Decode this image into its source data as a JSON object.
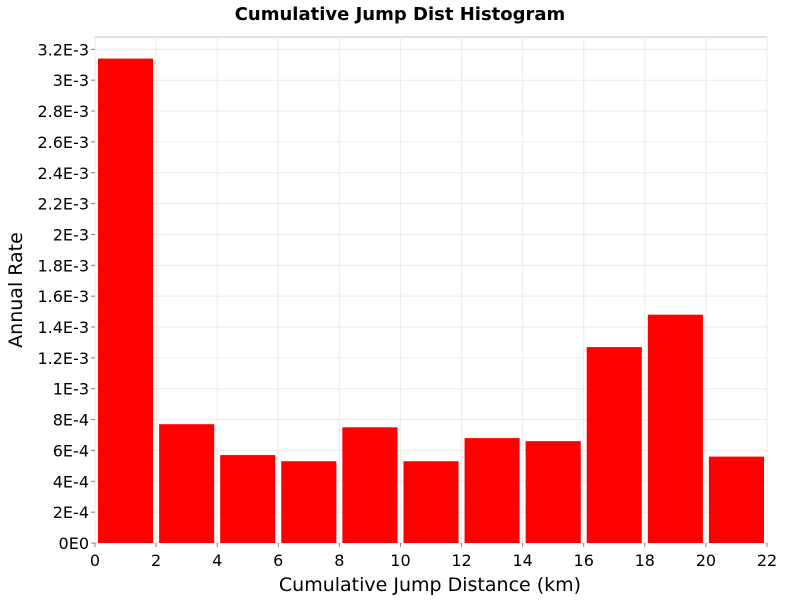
{
  "chart_data": {
    "type": "bar",
    "title": "Cumulative Jump Dist Histogram",
    "xlabel": "Cumulative Jump Distance (km)",
    "ylabel": "Annual Rate",
    "xlim": [
      0,
      22
    ],
    "ylim": [
      0,
      0.00328
    ],
    "grid": true,
    "legend": "none",
    "bar_color": "#ff0000",
    "x_ticks": [
      {
        "value": 0,
        "label": "0"
      },
      {
        "value": 2,
        "label": "2"
      },
      {
        "value": 4,
        "label": "4"
      },
      {
        "value": 6,
        "label": "6"
      },
      {
        "value": 8,
        "label": "8"
      },
      {
        "value": 10,
        "label": "10"
      },
      {
        "value": 12,
        "label": "12"
      },
      {
        "value": 14,
        "label": "14"
      },
      {
        "value": 16,
        "label": "16"
      },
      {
        "value": 18,
        "label": "18"
      },
      {
        "value": 20,
        "label": "20"
      },
      {
        "value": 22,
        "label": "22"
      }
    ],
    "y_ticks": [
      {
        "value": 0,
        "label": "0E0"
      },
      {
        "value": 0.0002,
        "label": "2E-4"
      },
      {
        "value": 0.0004,
        "label": "4E-4"
      },
      {
        "value": 0.0006,
        "label": "6E-4"
      },
      {
        "value": 0.0008,
        "label": "8E-4"
      },
      {
        "value": 0.001,
        "label": "1E-3"
      },
      {
        "value": 0.0012,
        "label": "1.2E-3"
      },
      {
        "value": 0.0014,
        "label": "1.4E-3"
      },
      {
        "value": 0.0016,
        "label": "1.6E-3"
      },
      {
        "value": 0.0018,
        "label": "1.8E-3"
      },
      {
        "value": 0.002,
        "label": "2E-3"
      },
      {
        "value": 0.0022,
        "label": "2.2E-3"
      },
      {
        "value": 0.0024,
        "label": "2.4E-3"
      },
      {
        "value": 0.0026,
        "label": "2.6E-3"
      },
      {
        "value": 0.0028,
        "label": "2.8E-3"
      },
      {
        "value": 0.003,
        "label": "3E-3"
      },
      {
        "value": 0.0032,
        "label": "3.2E-3"
      }
    ],
    "bins": [
      {
        "x": 1,
        "value": 0.00314
      },
      {
        "x": 3,
        "value": 0.00077
      },
      {
        "x": 5,
        "value": 0.00057
      },
      {
        "x": 7,
        "value": 0.00053
      },
      {
        "x": 9,
        "value": 0.00075
      },
      {
        "x": 11,
        "value": 0.00053
      },
      {
        "x": 13,
        "value": 0.00068
      },
      {
        "x": 15,
        "value": 0.00066
      },
      {
        "x": 17,
        "value": 0.00127
      },
      {
        "x": 19,
        "value": 0.00148
      },
      {
        "x": 21,
        "value": 0.00056
      }
    ],
    "bin_width": 2
  }
}
